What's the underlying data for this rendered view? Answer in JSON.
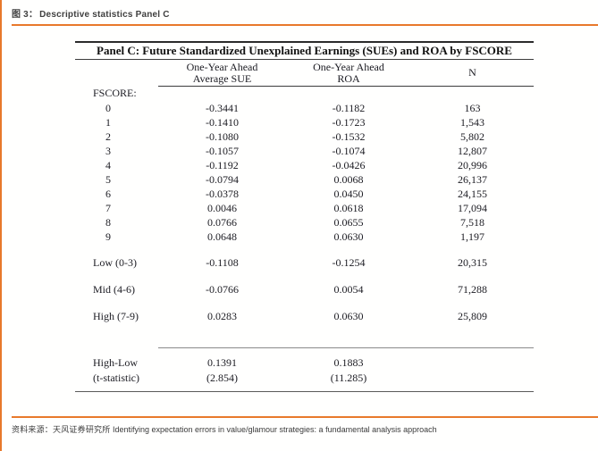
{
  "colors": {
    "accent_orange": "#e8792b",
    "table_text": "#1b1b22",
    "header_text": "#3f3f3f"
  },
  "header": {
    "figure_label": "图 3：",
    "figure_title": "Descriptive statistics Panel C"
  },
  "table": {
    "title": "Panel C: Future Standardized Unexplained Earnings (SUEs) and ROA by FSCORE",
    "columns": {
      "sue": {
        "line1": "One-Year Ahead",
        "line2": "Average SUE"
      },
      "roa": {
        "line1": "One-Year Ahead",
        "line2": "ROA"
      },
      "n": "N"
    },
    "rows": [
      {
        "type": "section",
        "label": "FSCORE:",
        "sue": "",
        "roa": "",
        "n": ""
      },
      {
        "type": "data",
        "indent": true,
        "label": "0",
        "sue": "-0.3441",
        "roa": "-0.1182",
        "n": "163"
      },
      {
        "type": "data",
        "indent": true,
        "label": "1",
        "sue": "-0.1410",
        "roa": "-0.1723",
        "n": "1,543"
      },
      {
        "type": "data",
        "indent": true,
        "label": "2",
        "sue": "-0.1080",
        "roa": "-0.1532",
        "n": "5,802"
      },
      {
        "type": "data",
        "indent": true,
        "label": "3",
        "sue": "-0.1057",
        "roa": "-0.1074",
        "n": "12,807"
      },
      {
        "type": "data",
        "indent": true,
        "label": "4",
        "sue": "-0.1192",
        "roa": "-0.0426",
        "n": "20,996"
      },
      {
        "type": "data",
        "indent": true,
        "label": "5",
        "sue": "-0.0794",
        "roa": "0.0068",
        "n": "26,137"
      },
      {
        "type": "data",
        "indent": true,
        "label": "6",
        "sue": "-0.0378",
        "roa": "0.0450",
        "n": "24,155"
      },
      {
        "type": "data",
        "indent": true,
        "label": "7",
        "sue": "0.0046",
        "roa": "0.0618",
        "n": "17,094"
      },
      {
        "type": "data",
        "indent": true,
        "label": "8",
        "sue": "0.0766",
        "roa": "0.0655",
        "n": "7,518"
      },
      {
        "type": "data",
        "indent": true,
        "label": "9",
        "sue": "0.0648",
        "roa": "0.0630",
        "n": "1,197"
      },
      {
        "type": "spacer"
      },
      {
        "type": "group",
        "label": "Low (0-3)",
        "sue": "-0.1108",
        "roa": "-0.1254",
        "n": "20,315"
      },
      {
        "type": "spacer"
      },
      {
        "type": "group",
        "label": "Mid (4-6)",
        "sue": "-0.0766",
        "roa": "0.0054",
        "n": "71,288"
      },
      {
        "type": "spacer"
      },
      {
        "type": "group",
        "label": "High (7-9)",
        "sue": "0.0283",
        "roa": "0.0630",
        "n": "25,809"
      },
      {
        "type": "spacer-tall"
      },
      {
        "type": "rule"
      },
      {
        "type": "group",
        "label": "High-Low",
        "sue": "0.1391",
        "roa": "0.1883",
        "n": ""
      },
      {
        "type": "last",
        "label": "(t-statistic)",
        "sue": "(2.854)",
        "roa": "(11.285)",
        "n": ""
      }
    ]
  },
  "footer": {
    "source_label": "资料来源：",
    "source_org": "天风证券研究所",
    "reference": "Identifying expectation errors in value/glamour strategies: a fundamental analysis approach"
  }
}
